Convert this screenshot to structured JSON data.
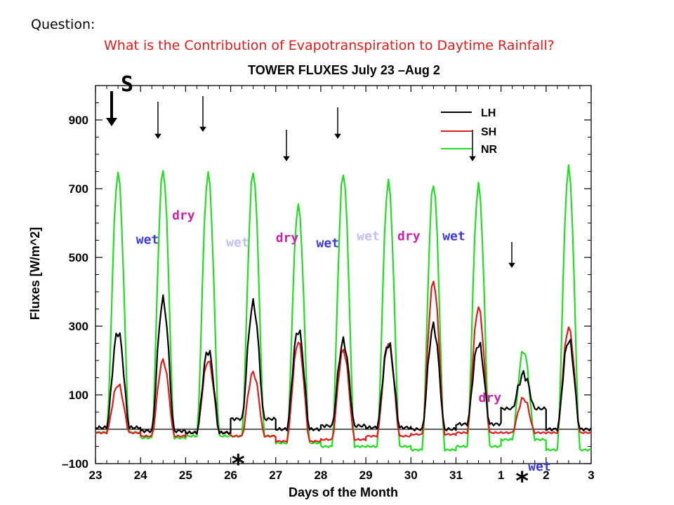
{
  "header": {
    "question": "Question:",
    "subquestion": "What is the Contribution of Evapotranspiration to Daytime Rainfall?"
  },
  "chart_data": {
    "type": "line",
    "title": "TOWER FLUXES July 23 –Aug 2",
    "xlabel": "Days of the Month",
    "ylabel": "Fluxes [W/m^2]",
    "xlim": [
      0,
      11
    ],
    "ylim": [
      -100,
      1000
    ],
    "x_tick_labels": [
      "23",
      "24",
      "25",
      "26",
      "27",
      "28",
      "29",
      "30",
      "31",
      "1",
      "2",
      "3"
    ],
    "y_ticks": [
      -100,
      100,
      300,
      500,
      700,
      900
    ],
    "y_tick_labels": [
      "–100",
      "100",
      "300",
      "500",
      "700",
      "900"
    ],
    "grid": false,
    "zero_line": true,
    "legend_position": "top-right",
    "series": [
      {
        "name": "LH",
        "color": "#000000",
        "peaks": [
          285,
          375,
          230,
          365,
          290,
          255,
          250,
          300,
          250,
          160,
          260
        ],
        "nights": [
          5,
          -5,
          -10,
          30,
          0,
          10,
          5,
          0,
          15,
          60,
          0
        ]
      },
      {
        "name": "SH",
        "color": "#dd1c1c",
        "peaks": [
          130,
          200,
          200,
          165,
          255,
          230,
          250,
          430,
          355,
          90,
          295
        ],
        "nights": [
          -10,
          -20,
          -10,
          -20,
          -35,
          -30,
          -20,
          -15,
          -10,
          -10,
          -10
        ]
      },
      {
        "name": "NR",
        "color": "#22dd22",
        "peaks": [
          745,
          755,
          745,
          750,
          650,
          745,
          720,
          715,
          710,
          230,
          760
        ],
        "nights": [
          -10,
          -25,
          -20,
          -20,
          -40,
          -50,
          -50,
          -60,
          -50,
          -30,
          -60
        ]
      }
    ]
  },
  "annotations": {
    "labels": [
      {
        "text": "wet",
        "color": "#3a3ad8",
        "day": 0.9,
        "flux": 540
      },
      {
        "text": "dry",
        "color": "#cc22aa",
        "day": 1.7,
        "flux": 610
      },
      {
        "text": "wet",
        "color": "#c0c0f2",
        "day": 2.9,
        "flux": 532
      },
      {
        "text": "dry",
        "color": "#cc22aa",
        "day": 4.0,
        "flux": 545
      },
      {
        "text": "wet",
        "color": "#3a3ad8",
        "day": 4.9,
        "flux": 530
      },
      {
        "text": "wet",
        "color": "#c0c0f2",
        "day": 5.8,
        "flux": 550
      },
      {
        "text": "dry",
        "color": "#cc22aa",
        "day": 6.7,
        "flux": 550
      },
      {
        "text": "wet",
        "color": "#3a3ad8",
        "day": 7.7,
        "flux": 550
      },
      {
        "text": "dry",
        "color": "#cc22aa",
        "day": 8.5,
        "flux": 80
      },
      {
        "text": "wet",
        "color": "#3a3ad8",
        "day": 9.6,
        "flux": -120
      }
    ],
    "stars": [
      {
        "text": "*",
        "day": 3.0,
        "flux": -125
      },
      {
        "text": "*",
        "day": 9.3,
        "flux": -175
      }
    ],
    "s_marker": "S"
  }
}
